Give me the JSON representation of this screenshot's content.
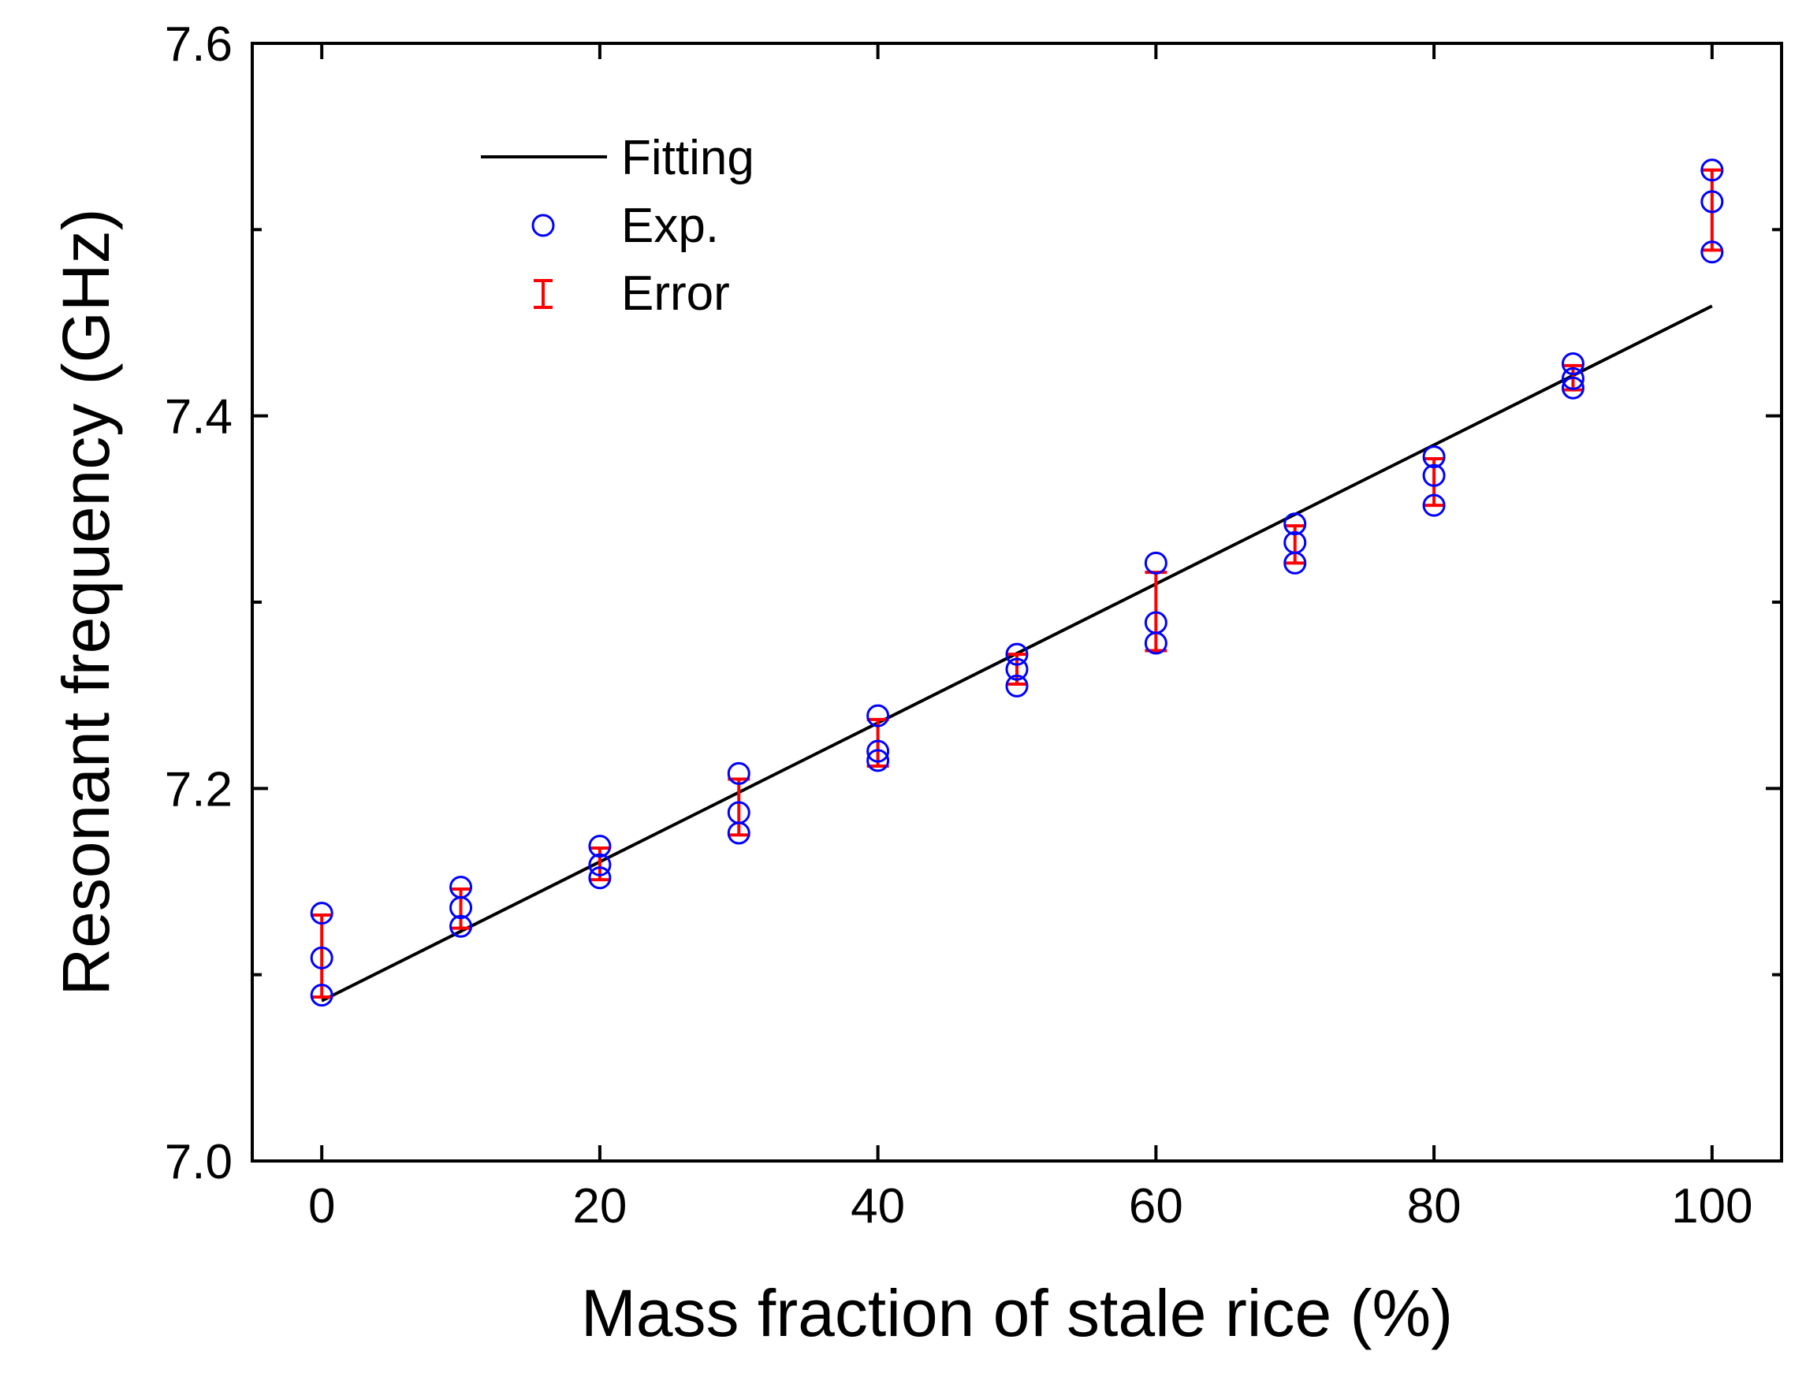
{
  "chart_data": {
    "type": "scatter",
    "title": "",
    "xlabel": "Mass fraction of stale rice (%)",
    "ylabel": "Resonant frequency (GHz)",
    "xlim": [
      -5,
      105
    ],
    "ylim": [
      7.0,
      7.6
    ],
    "xticks": [
      0,
      20,
      40,
      60,
      80,
      100
    ],
    "xtick_labels": [
      "0",
      "20",
      "40",
      "60",
      "80",
      "100"
    ],
    "yticks": [
      7.0,
      7.2,
      7.4,
      7.6
    ],
    "ytick_labels": [
      "7.0",
      "7.2",
      "7.4",
      "7.6"
    ],
    "y_minor_ticks": [
      7.1,
      7.3,
      7.5
    ],
    "grid": false,
    "legend_position": "top-left",
    "legend": {
      "fitting": "Fitting",
      "exp": "Exp.",
      "error": "Error"
    },
    "fitting": {
      "name": "Fitting",
      "x": [
        0,
        100
      ],
      "y": [
        7.086,
        7.459
      ]
    },
    "exp": {
      "name": "Exp.",
      "points": [
        {
          "x": 0,
          "y": 7.133
        },
        {
          "x": 0,
          "y": 7.109
        },
        {
          "x": 0,
          "y": 7.089
        },
        {
          "x": 10,
          "y": 7.147
        },
        {
          "x": 10,
          "y": 7.136
        },
        {
          "x": 10,
          "y": 7.126
        },
        {
          "x": 20,
          "y": 7.169
        },
        {
          "x": 20,
          "y": 7.159
        },
        {
          "x": 20,
          "y": 7.152
        },
        {
          "x": 30,
          "y": 7.208
        },
        {
          "x": 30,
          "y": 7.187
        },
        {
          "x": 30,
          "y": 7.176
        },
        {
          "x": 40,
          "y": 7.239
        },
        {
          "x": 40,
          "y": 7.22
        },
        {
          "x": 40,
          "y": 7.215
        },
        {
          "x": 50,
          "y": 7.272
        },
        {
          "x": 50,
          "y": 7.264
        },
        {
          "x": 50,
          "y": 7.255
        },
        {
          "x": 60,
          "y": 7.321
        },
        {
          "x": 60,
          "y": 7.289
        },
        {
          "x": 60,
          "y": 7.278
        },
        {
          "x": 70,
          "y": 7.342
        },
        {
          "x": 70,
          "y": 7.332
        },
        {
          "x": 70,
          "y": 7.321
        },
        {
          "x": 80,
          "y": 7.378
        },
        {
          "x": 80,
          "y": 7.368
        },
        {
          "x": 80,
          "y": 7.352
        },
        {
          "x": 90,
          "y": 7.428
        },
        {
          "x": 90,
          "y": 7.42
        },
        {
          "x": 90,
          "y": 7.415
        },
        {
          "x": 100,
          "y": 7.532
        },
        {
          "x": 100,
          "y": 7.515
        },
        {
          "x": 100,
          "y": 7.488
        }
      ]
    },
    "error": {
      "name": "Error",
      "bars": [
        {
          "x": 0,
          "low": 7.088,
          "high": 7.132
        },
        {
          "x": 10,
          "low": 7.125,
          "high": 7.146
        },
        {
          "x": 20,
          "low": 7.151,
          "high": 7.168
        },
        {
          "x": 30,
          "low": 7.175,
          "high": 7.205
        },
        {
          "x": 40,
          "low": 7.212,
          "high": 7.237
        },
        {
          "x": 50,
          "low": 7.256,
          "high": 7.272
        },
        {
          "x": 60,
          "low": 7.274,
          "high": 7.316
        },
        {
          "x": 70,
          "low": 7.321,
          "high": 7.341
        },
        {
          "x": 80,
          "low": 7.352,
          "high": 7.377
        },
        {
          "x": 90,
          "low": 7.414,
          "high": 7.427
        },
        {
          "x": 100,
          "low": 7.489,
          "high": 7.532
        }
      ]
    },
    "colors": {
      "fitting": "#000000",
      "exp": "#0000ff",
      "error": "#ff0000",
      "axis": "#000000"
    }
  }
}
